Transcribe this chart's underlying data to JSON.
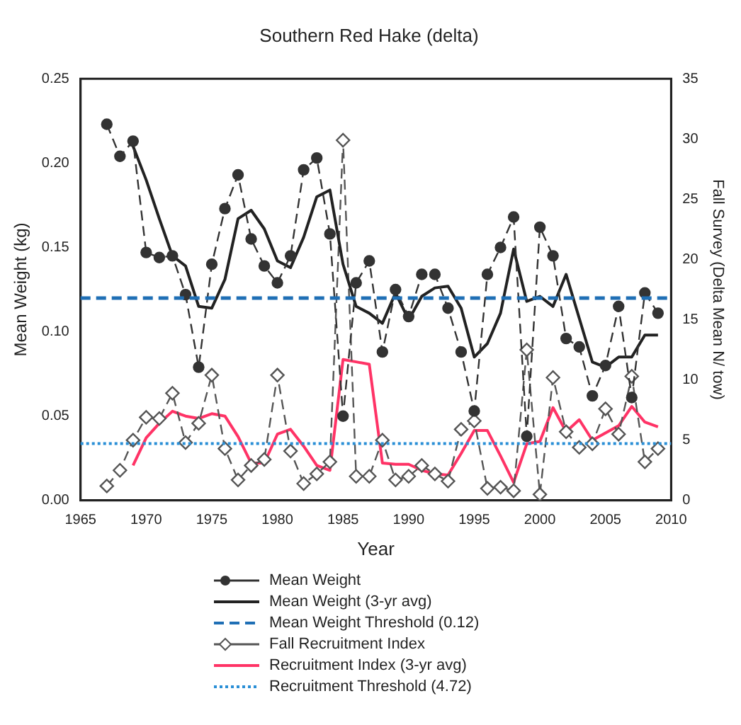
{
  "chart_data": {
    "type": "line",
    "title": "Southern Red Hake (delta)",
    "xlabel": "Year",
    "ylabel": "Mean Weight (kg)",
    "y2label": "Fall Survey (Delta Mean N/ tow)",
    "xlim": [
      1965,
      2010
    ],
    "xticks": [
      1965,
      1970,
      1975,
      1980,
      1985,
      1990,
      1995,
      2000,
      2005,
      2010
    ],
    "ylim": [
      0,
      0.25
    ],
    "yticks": [
      {
        "value": 0,
        "label": "0.00"
      },
      {
        "value": 0.05,
        "label": "0.05"
      },
      {
        "value": 0.1,
        "label": "0.10"
      },
      {
        "value": 0.15,
        "label": "0.15"
      },
      {
        "value": 0.2,
        "label": "0.20"
      },
      {
        "value": 0.25,
        "label": "0.25"
      }
    ],
    "y2lim": [
      0,
      35
    ],
    "y2ticks": [
      0,
      5,
      10,
      15,
      20,
      25,
      30,
      35
    ],
    "grid": false,
    "legend": "bottom",
    "series": [
      {
        "name": "Mean Weight",
        "color": "#333333",
        "marker": "circle",
        "line_style": "dashed",
        "axis": "y",
        "x": [
          1967,
          1968,
          1969,
          1970,
          1971,
          1972,
          1973,
          1974,
          1975,
          1976,
          1977,
          1978,
          1979,
          1980,
          1981,
          1982,
          1983,
          1984,
          1985,
          1986,
          1987,
          1988,
          1989,
          1990,
          1991,
          1992,
          1993,
          1994,
          1995,
          1996,
          1997,
          1998,
          1999,
          2000,
          2001,
          2002,
          2003,
          2004,
          2005,
          2006,
          2007,
          2008,
          2009
        ],
        "values": [
          0.223,
          0.204,
          0.213,
          0.147,
          0.144,
          0.145,
          0.122,
          0.079,
          0.14,
          0.173,
          0.193,
          0.155,
          0.139,
          0.129,
          0.145,
          0.196,
          0.203,
          0.158,
          0.05,
          0.129,
          0.142,
          0.088,
          0.125,
          0.109,
          0.134,
          0.134,
          0.114,
          0.088,
          0.053,
          0.134,
          0.15,
          0.168,
          0.038,
          0.162,
          0.145,
          0.096,
          0.091,
          0.062,
          0.08,
          0.115,
          0.061,
          0.123,
          0.111
        ]
      },
      {
        "name": "Mean Weight (3-yr avg)",
        "color": "#222222",
        "marker": "none",
        "line_style": "solid",
        "axis": "y",
        "x": [
          1969,
          1970,
          1971,
          1972,
          1973,
          1974,
          1975,
          1976,
          1977,
          1978,
          1979,
          1980,
          1981,
          1982,
          1983,
          1984,
          1985,
          1986,
          1987,
          1988,
          1989,
          1990,
          1991,
          1992,
          1993,
          1994,
          1995,
          1996,
          1997,
          1998,
          1999,
          2000,
          2001,
          2002,
          2003,
          2004,
          2005,
          2006,
          2007,
          2008,
          2009
        ],
        "values": [
          0.21,
          0.19,
          0.167,
          0.145,
          0.139,
          0.115,
          0.114,
          0.131,
          0.167,
          0.172,
          0.161,
          0.142,
          0.138,
          0.156,
          0.18,
          0.184,
          0.14,
          0.115,
          0.111,
          0.105,
          0.123,
          0.107,
          0.121,
          0.126,
          0.127,
          0.114,
          0.085,
          0.093,
          0.111,
          0.149,
          0.118,
          0.121,
          0.115,
          0.134,
          0.108,
          0.082,
          0.079,
          0.085,
          0.085,
          0.098,
          0.098
        ]
      },
      {
        "name": "Fall Recruitment Index",
        "color": "#555555",
        "marker": "diamond",
        "line_style": "dashed",
        "axis": "y2",
        "x": [
          1967,
          1968,
          1969,
          1970,
          1971,
          1972,
          1973,
          1974,
          1975,
          1976,
          1977,
          1978,
          1979,
          1980,
          1981,
          1982,
          1983,
          1984,
          1985,
          1986,
          1987,
          1988,
          1989,
          1990,
          1991,
          1992,
          1993,
          1994,
          1995,
          1996,
          1997,
          1998,
          1999,
          2000,
          2001,
          2002,
          2003,
          2004,
          2005,
          2006,
          2007,
          2008,
          2009
        ],
        "values": [
          1.2,
          2.5,
          5,
          6.9,
          6.8,
          8.9,
          4.8,
          6.4,
          10.4,
          4.3,
          1.7,
          2.9,
          3.4,
          10.4,
          4.1,
          1.4,
          2.2,
          3.2,
          29.9,
          2,
          2,
          5,
          1.7,
          2,
          2.9,
          2.2,
          1.6,
          5.9,
          6.6,
          1,
          1.1,
          0.8,
          12.5,
          0.5,
          10.2,
          5.7,
          4.4,
          4.7,
          7.6,
          5.5,
          10.3,
          3.2,
          4.3
        ]
      },
      {
        "name": "Recruitment Index (3-yr avg)",
        "color": "#ff3366",
        "marker": "none",
        "line_style": "solid",
        "axis": "y2",
        "x": [
          1969,
          1970,
          1971,
          1972,
          1973,
          1974,
          1975,
          1976,
          1977,
          1978,
          1979,
          1980,
          1981,
          1982,
          1983,
          1984,
          1985,
          1986,
          1987,
          1988,
          1989,
          1990,
          1991,
          1992,
          1993,
          1994,
          1995,
          1996,
          1997,
          1998,
          1999,
          2000,
          2001,
          2002,
          2003,
          2004,
          2005,
          2006,
          2007,
          2008,
          2009
        ],
        "values": [
          2.9,
          5.2,
          6.4,
          7.4,
          7,
          6.8,
          7.2,
          7,
          5.3,
          3.1,
          3.1,
          5.5,
          5.9,
          4.5,
          2.9,
          2.5,
          11.7,
          11.5,
          11.3,
          3.1,
          3,
          3,
          2.5,
          2.2,
          2.1,
          3.9,
          5.8,
          5.8,
          3.7,
          1.5,
          4.7,
          4.9,
          7.7,
          5.7,
          6.7,
          5,
          5.6,
          6.2,
          7.8,
          6.5,
          6.1
        ]
      }
    ],
    "ref_lines": [
      {
        "axis": "y",
        "value": 0.12,
        "label": "Mean Weight Threshold (0.12)",
        "color": "#1f6fb5",
        "line_style": "dashed"
      },
      {
        "axis": "y2",
        "value": 4.72,
        "label": "Recruitment Threshold (4.72)",
        "color": "#2a8fd6",
        "line_style": "dotted"
      }
    ]
  }
}
